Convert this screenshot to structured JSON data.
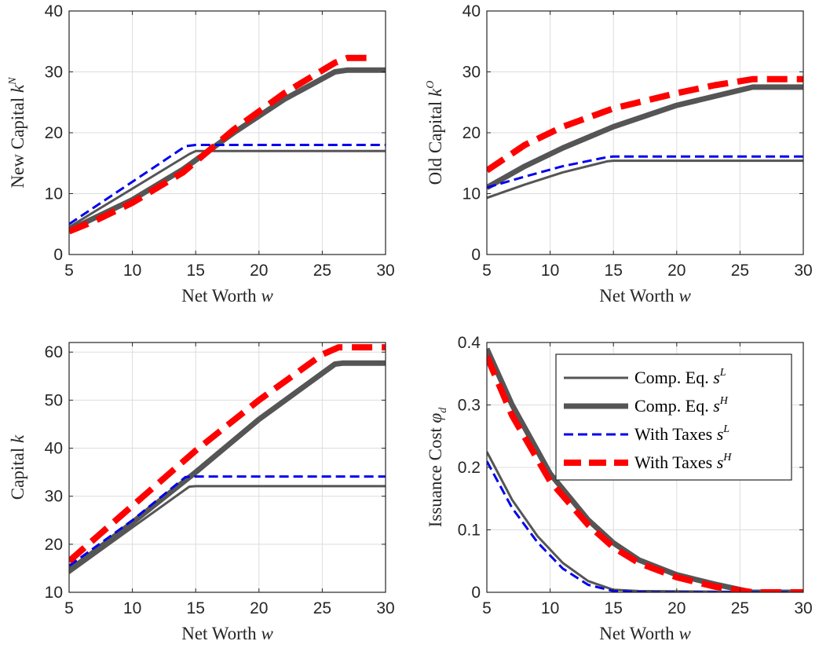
{
  "colors": {
    "comp_eq": "#555555",
    "taxes_low": "#0000ee",
    "taxes_high": "#ff0000",
    "grid": "#dddddd",
    "axis": "#262626"
  },
  "legend": {
    "placement": "top-right of panel 4",
    "entries": [
      {
        "main": "Comp. Eq. ",
        "var": "s",
        "sup": "L"
      },
      {
        "main": "Comp. Eq. ",
        "var": "s",
        "sup": "H"
      },
      {
        "main": "With Taxes ",
        "var": "s",
        "sup": "L"
      },
      {
        "main": "With Taxes ",
        "var": "s",
        "sup": "H"
      }
    ]
  },
  "chart_data": [
    {
      "type": "line",
      "xlabel": {
        "main": "Net Worth ",
        "var": "w"
      },
      "ylabel": {
        "main": "New Capital ",
        "var": "k",
        "sup": "N"
      },
      "xlim": [
        5,
        30
      ],
      "ylim": [
        0,
        40
      ],
      "xticks": [
        "5",
        "10",
        "15",
        "20",
        "25",
        "30"
      ],
      "yticks": [
        "0",
        "10",
        "20",
        "30",
        "40"
      ],
      "grid": true,
      "series": [
        {
          "style": "comp_low",
          "x": [
            5,
            14.5,
            15,
            30
          ],
          "y": [
            4.5,
            16.5,
            17,
            17
          ]
        },
        {
          "style": "comp_high",
          "x": [
            5,
            7,
            10,
            14,
            18,
            22,
            26,
            27,
            30
          ],
          "y": [
            4,
            6,
            9,
            14,
            20,
            25.5,
            30,
            30.3,
            30.3
          ]
        },
        {
          "style": "tax_low",
          "x": [
            5,
            14.2,
            15,
            30
          ],
          "y": [
            5,
            17.8,
            18,
            18
          ]
        },
        {
          "style": "tax_high",
          "x": [
            5,
            7,
            10,
            14,
            18,
            22,
            26,
            27,
            28.5
          ],
          "y": [
            3.8,
            5.5,
            8.5,
            13.5,
            20.5,
            26.5,
            31.5,
            32.3,
            32.3
          ]
        }
      ]
    },
    {
      "type": "line",
      "xlabel": {
        "main": "Net Worth ",
        "var": "w"
      },
      "ylabel": {
        "main": "Old Capital ",
        "var": "k",
        "sup": "O"
      },
      "xlim": [
        5,
        30
      ],
      "ylim": [
        0,
        40
      ],
      "xticks": [
        "5",
        "10",
        "15",
        "20",
        "25",
        "30"
      ],
      "yticks": [
        "0",
        "10",
        "20",
        "30",
        "40"
      ],
      "grid": true,
      "series": [
        {
          "style": "comp_low",
          "x": [
            5,
            8,
            11,
            14.5,
            15,
            30
          ],
          "y": [
            9.3,
            11.5,
            13.5,
            15.3,
            15.4,
            15.4
          ]
        },
        {
          "style": "comp_high",
          "x": [
            5,
            8,
            11,
            15,
            20,
            23,
            26,
            27,
            30
          ],
          "y": [
            11,
            14.5,
            17.5,
            21,
            24.5,
            26,
            27.5,
            27.5,
            27.5
          ]
        },
        {
          "style": "tax_low",
          "x": [
            5,
            8,
            11,
            14.5,
            15,
            30
          ],
          "y": [
            11,
            12.8,
            14.5,
            16,
            16.1,
            16.1
          ]
        },
        {
          "style": "tax_high",
          "x": [
            5,
            8,
            11,
            15,
            20,
            23,
            26,
            27,
            30
          ],
          "y": [
            13.8,
            18,
            21,
            24,
            26.5,
            27.8,
            28.8,
            28.8,
            28.8
          ]
        }
      ]
    },
    {
      "type": "line",
      "xlabel": {
        "main": "Net Worth ",
        "var": "w"
      },
      "ylabel": {
        "main": "Capital ",
        "var": "k"
      },
      "xlim": [
        5,
        30
      ],
      "ylim": [
        10,
        62
      ],
      "xticks": [
        "5",
        "10",
        "15",
        "20",
        "25",
        "30"
      ],
      "yticks": [
        "10",
        "20",
        "30",
        "40",
        "50",
        "60"
      ],
      "grid": true,
      "series": [
        {
          "style": "comp_low",
          "x": [
            5,
            10,
            14.5,
            15,
            30
          ],
          "y": [
            14,
            23.5,
            32,
            32.1,
            32.1
          ]
        },
        {
          "style": "comp_high",
          "x": [
            5,
            10,
            15,
            20,
            26,
            26.6,
            30
          ],
          "y": [
            14.5,
            24.5,
            35,
            46,
            57.5,
            57.7,
            57.7
          ]
        },
        {
          "style": "tax_low",
          "x": [
            5,
            10,
            14.2,
            15,
            30
          ],
          "y": [
            15.5,
            25,
            34,
            34.1,
            34.1
          ]
        },
        {
          "style": "tax_high",
          "x": [
            5,
            10,
            15,
            20,
            25,
            26.3,
            30
          ],
          "y": [
            16.5,
            28,
            39.5,
            50,
            59.5,
            61,
            61
          ]
        }
      ]
    },
    {
      "type": "line",
      "xlabel": {
        "main": "Net Worth ",
        "var": "w"
      },
      "ylabel": {
        "main": "Issuance Cost ",
        "var": "φ",
        "sub": "d"
      },
      "xlim": [
        5,
        30
      ],
      "ylim": [
        0,
        0.4
      ],
      "xticks": [
        "5",
        "10",
        "15",
        "20",
        "25",
        "30"
      ],
      "yticks": [
        "0",
        "0.1",
        "0.2",
        "0.3",
        "0.4"
      ],
      "grid": true,
      "series": [
        {
          "style": "comp_low",
          "x": [
            5,
            7,
            9,
            11,
            13,
            15,
            17,
            30
          ],
          "y": [
            0.225,
            0.148,
            0.09,
            0.047,
            0.018,
            0.004,
            0.002,
            0.0
          ]
        },
        {
          "style": "comp_high",
          "x": [
            5,
            7,
            10,
            13,
            15,
            17,
            20,
            23,
            26,
            30
          ],
          "y": [
            0.39,
            0.3,
            0.19,
            0.116,
            0.079,
            0.052,
            0.028,
            0.013,
            0.0,
            0.0
          ]
        },
        {
          "style": "tax_low",
          "x": [
            5,
            7,
            9,
            11,
            13,
            15,
            18,
            30
          ],
          "y": [
            0.21,
            0.135,
            0.08,
            0.038,
            0.012,
            0.002,
            0.0,
            0.0
          ]
        },
        {
          "style": "tax_high",
          "x": [
            5,
            7,
            10,
            13,
            15,
            17,
            20,
            23,
            26,
            30
          ],
          "y": [
            0.378,
            0.283,
            0.178,
            0.108,
            0.072,
            0.047,
            0.024,
            0.009,
            0.0,
            0.0
          ]
        }
      ]
    }
  ]
}
